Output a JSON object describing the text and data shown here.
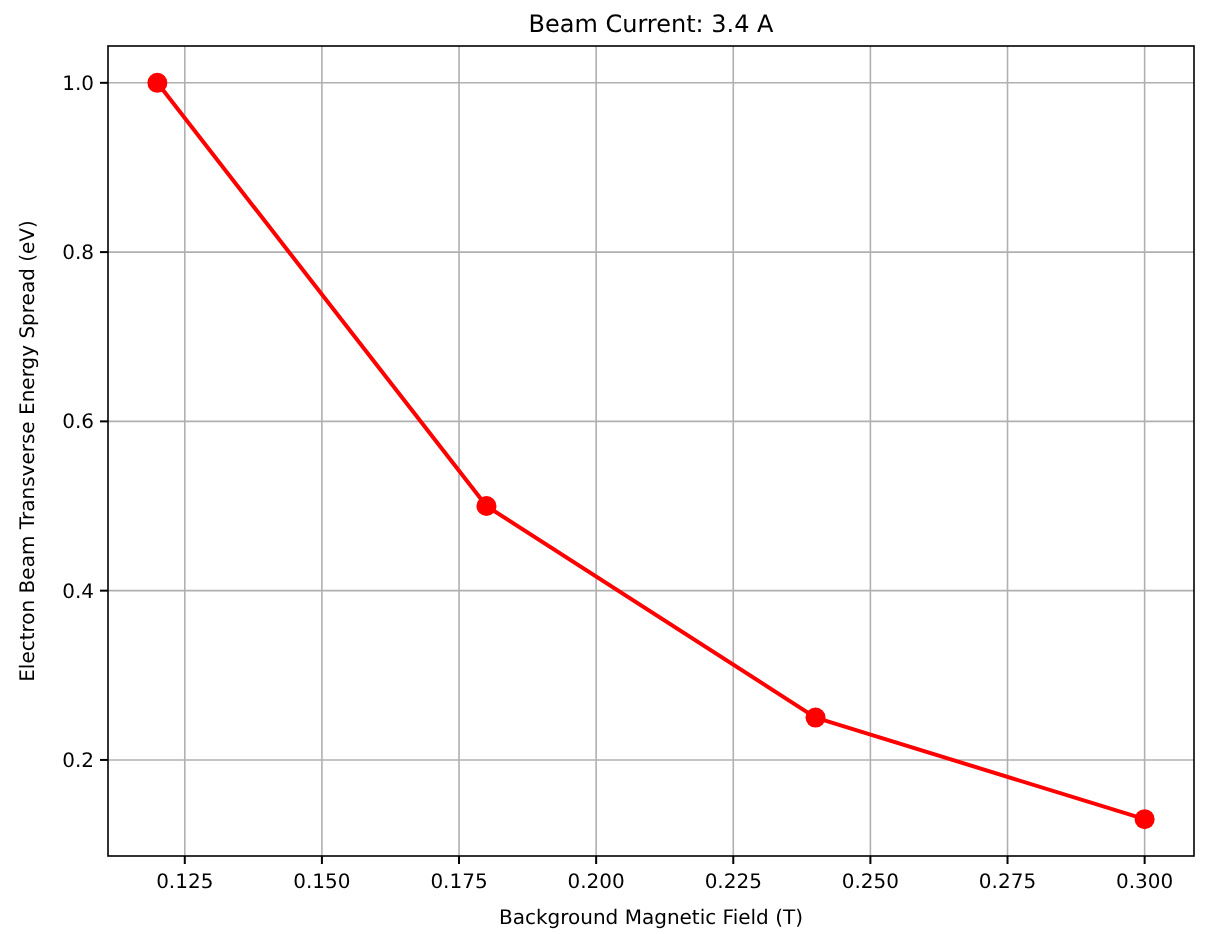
{
  "chart_data": {
    "type": "line",
    "title": "Beam Current: 3.4 A",
    "xlabel": "Background Magnetic Field (T)",
    "ylabel": "Electron Beam Transverse Energy Spread (eV)",
    "x": [
      0.12,
      0.18,
      0.24,
      0.3
    ],
    "series": [
      {
        "color": "#ff0000",
        "values": [
          1.0,
          0.5,
          0.25,
          0.13
        ]
      }
    ],
    "xlim": [
      0.111,
      0.309
    ],
    "xticks": [
      {
        "value": 0.125,
        "label": "0.125"
      },
      {
        "value": 0.15,
        "label": "0.150"
      },
      {
        "value": 0.175,
        "label": "0.175"
      },
      {
        "value": 0.2,
        "label": "0.200"
      },
      {
        "value": 0.225,
        "label": "0.225"
      },
      {
        "value": 0.25,
        "label": "0.250"
      },
      {
        "value": 0.275,
        "label": "0.275"
      },
      {
        "value": 0.3,
        "label": "0.300"
      }
    ],
    "ylim": [
      0.0865,
      1.0435
    ],
    "yticks": [
      0.2,
      0.4,
      0.6,
      0.8,
      {
        "value": 1.0,
        "label": "1.0"
      }
    ],
    "grid": true,
    "marker": "circle",
    "line_style": "solid"
  }
}
